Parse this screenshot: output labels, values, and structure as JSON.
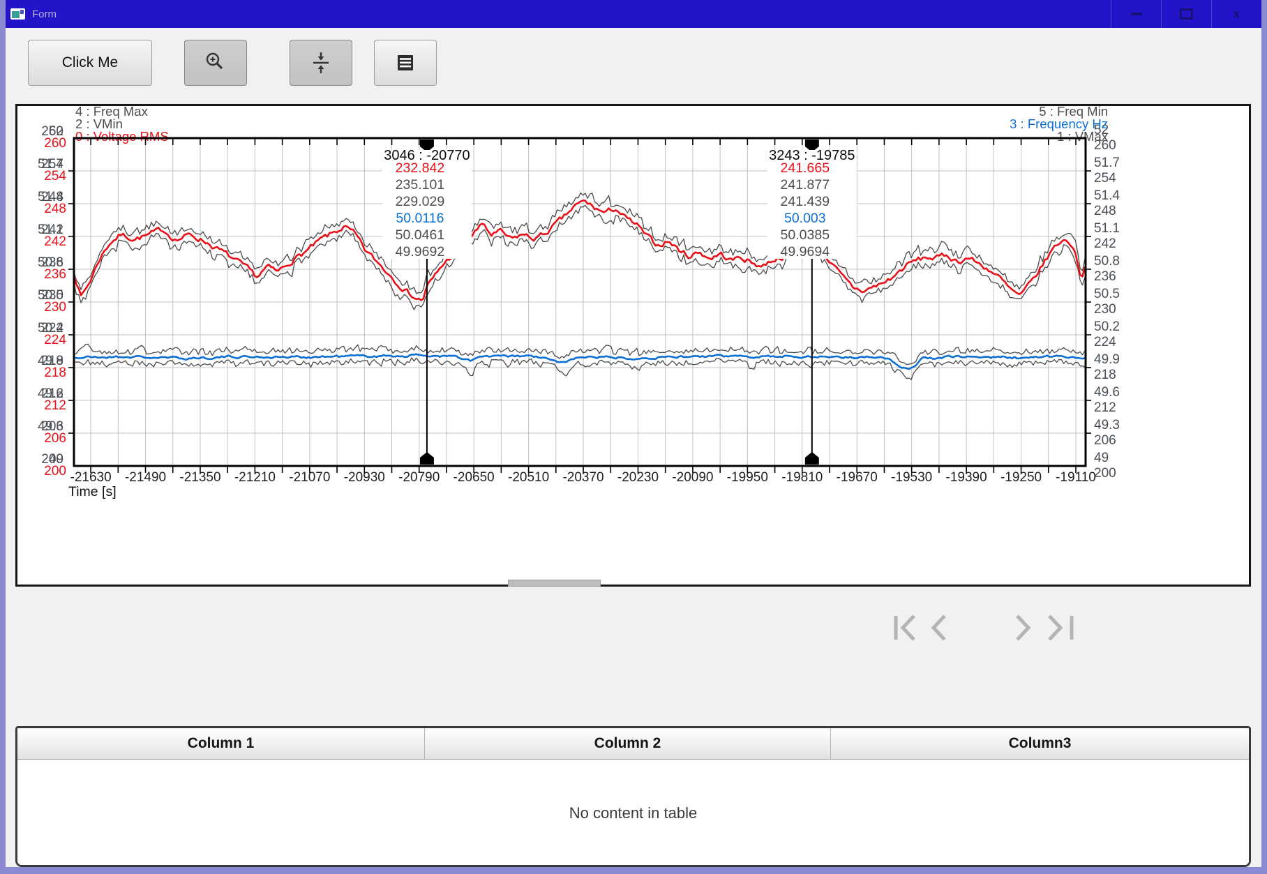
{
  "window": {
    "title": "Form",
    "close_glyph": "x"
  },
  "toolbar": {
    "click_me_label": "Click Me",
    "zoom_icon": "magnifier-plus",
    "fit_icon": "collapse-vertical",
    "table_icon": "list-sheet"
  },
  "chart_data": {
    "type": "line",
    "xlabel": "Time [s]",
    "x_axis": {
      "min": -21673,
      "max": -19085,
      "label_start": -21630,
      "label_step": 140,
      "minor_step": 70,
      "labels": [
        "-21630",
        "-21490",
        "-21350",
        "-21210",
        "-21070",
        "-20930",
        "-20790",
        "-20650",
        "-20510",
        "-20370",
        "-20230",
        "-20090",
        "-19950",
        "-19810",
        "-19670",
        "-19530",
        "-19390",
        "-19250",
        "-19110"
      ]
    },
    "volt_axis": {
      "min": 200,
      "max": 260,
      "step": 6
    },
    "freq_axis": {
      "min": 49,
      "max": 52,
      "step": 0.3
    },
    "grid_color": "#c2c2c2",
    "tick_label_color": "#4a4f55",
    "x_label_color": "#1f1f1f",
    "legend_left": [
      {
        "label": "4 : Freq Max",
        "color": "#4d4d4d"
      },
      {
        "label": "2 : VMin",
        "color": "#4d4d4d"
      },
      {
        "label": "0 : Voltage RMS",
        "color": "#e91018"
      }
    ],
    "legend_right": [
      {
        "label": "5 : Freq Min",
        "color": "#4d4d4d"
      },
      {
        "label": "3 : Frequency Hz",
        "color": "#0c6fd6"
      },
      {
        "label": "1 : VMax",
        "color": "#4d4d4d"
      }
    ],
    "series": [
      {
        "name": "Voltage RMS",
        "axis": "V",
        "color": "#e91018",
        "width": 2.6,
        "jitter": 0.55,
        "seed": 7,
        "anchors": [
          [
            -21676,
            236
          ],
          [
            -21655,
            231
          ],
          [
            -21634,
            233.5
          ],
          [
            -21607,
            238
          ],
          [
            -21580,
            241
          ],
          [
            -21553,
            242.3
          ],
          [
            -21518,
            241.6
          ],
          [
            -21482,
            242.2
          ],
          [
            -21446,
            243.3
          ],
          [
            -21411,
            241.4
          ],
          [
            -21375,
            242.3
          ],
          [
            -21339,
            241.2
          ],
          [
            -21312,
            240
          ],
          [
            -21277,
            238.4
          ],
          [
            -21241,
            236.6
          ],
          [
            -21205,
            234.6
          ],
          [
            -21179,
            236.4
          ],
          [
            -21152,
            235.4
          ],
          [
            -21116,
            237.6
          ],
          [
            -21072,
            239.6
          ],
          [
            -21036,
            241.6
          ],
          [
            -21009,
            242.6
          ],
          [
            -20982,
            243.8
          ],
          [
            -20955,
            242.4
          ],
          [
            -20929,
            239.5
          ],
          [
            -20893,
            237
          ],
          [
            -20857,
            234.5
          ],
          [
            -20822,
            232
          ],
          [
            -20795,
            230.6
          ],
          [
            -20781,
            230.3
          ],
          [
            -20770,
            232.842
          ],
          [
            -20756,
            234
          ],
          [
            -20733,
            236.5
          ],
          [
            -20706,
            238.5
          ],
          [
            -20679,
            240
          ],
          [
            -20652,
            242.5
          ],
          [
            -20625,
            244.3
          ],
          [
            -20607,
            242.3
          ],
          [
            -20580,
            242.8
          ],
          [
            -20554,
            241.3
          ],
          [
            -20527,
            242.4
          ],
          [
            -20500,
            241.6
          ],
          [
            -20474,
            242.2
          ],
          [
            -20447,
            243.8
          ],
          [
            -20420,
            245.4
          ],
          [
            -20394,
            247.4
          ],
          [
            -20367,
            248.4
          ],
          [
            -20340,
            247.2
          ],
          [
            -20313,
            246.2
          ],
          [
            -20287,
            247.2
          ],
          [
            -20260,
            245.2
          ],
          [
            -20233,
            244
          ],
          [
            -20206,
            241.8
          ],
          [
            -20180,
            240.4
          ],
          [
            -20153,
            241.2
          ],
          [
            -20126,
            239.6
          ],
          [
            -20099,
            238.4
          ],
          [
            -20073,
            239.2
          ],
          [
            -20046,
            238
          ],
          [
            -20019,
            238.8
          ],
          [
            -19992,
            237.6
          ],
          [
            -19965,
            238.2
          ],
          [
            -19939,
            237.2
          ],
          [
            -19912,
            236.6
          ],
          [
            -19885,
            237.8
          ],
          [
            -19858,
            238.4
          ],
          [
            -19832,
            240.2
          ],
          [
            -19805,
            241.2
          ],
          [
            -19785,
            241.665
          ],
          [
            -19760,
            239.6
          ],
          [
            -19733,
            236.8
          ],
          [
            -19706,
            234.4
          ],
          [
            -19680,
            232.6
          ],
          [
            -19653,
            232
          ],
          [
            -19626,
            232.8
          ],
          [
            -19599,
            233.6
          ],
          [
            -19573,
            234.8
          ],
          [
            -19546,
            236.6
          ],
          [
            -19519,
            237.6
          ],
          [
            -19492,
            238.2
          ],
          [
            -19466,
            238
          ],
          [
            -19439,
            238.6
          ],
          [
            -19412,
            237.4
          ],
          [
            -19385,
            238.2
          ],
          [
            -19359,
            237
          ],
          [
            -19332,
            236
          ],
          [
            -19305,
            234.4
          ],
          [
            -19278,
            232.2
          ],
          [
            -19252,
            231
          ],
          [
            -19225,
            233.4
          ],
          [
            -19198,
            236.4
          ],
          [
            -19172,
            239.4
          ],
          [
            -19145,
            241.5
          ],
          [
            -19118,
            240.5
          ],
          [
            -19104,
            237
          ],
          [
            -19096,
            234.5
          ],
          [
            -19087,
            236.5
          ]
        ]
      },
      {
        "name": "Frequency Hz",
        "axis": "F",
        "color": "#0c6fd6",
        "width": 2.6,
        "jitter": 0.012,
        "seed": 21,
        "anchors": [
          [
            -21673,
            49.99
          ],
          [
            -21550,
            50.0
          ],
          [
            -21400,
            49.985
          ],
          [
            -21250,
            50.0
          ],
          [
            -21100,
            49.995
          ],
          [
            -20950,
            50.005
          ],
          [
            -20770,
            50.0116
          ],
          [
            -20700,
            50.0
          ],
          [
            -20660,
            49.96
          ],
          [
            -20630,
            50.0
          ],
          [
            -20500,
            50.005
          ],
          [
            -20415,
            49.94
          ],
          [
            -20385,
            50.0
          ],
          [
            -20250,
            49.99
          ],
          [
            -20100,
            50.0
          ],
          [
            -19950,
            50.005
          ],
          [
            -19785,
            50.003
          ],
          [
            -19700,
            49.995
          ],
          [
            -19600,
            50.0
          ],
          [
            -19535,
            49.87
          ],
          [
            -19505,
            49.985
          ],
          [
            -19400,
            50.0
          ],
          [
            -19250,
            49.99
          ],
          [
            -19150,
            50.0
          ],
          [
            -19085,
            49.99
          ]
        ]
      },
      {
        "name": "VMax",
        "axis": "V",
        "color": "#4a4a4a",
        "width": 1.3,
        "base": "Voltage RMS",
        "offset": 0.7,
        "spread": 1.2,
        "seed": 11
      },
      {
        "name": "VMin",
        "axis": "V",
        "color": "#4a4a4a",
        "width": 1.3,
        "base": "Voltage RMS",
        "offset": -0.7,
        "spread": 1.2,
        "seed": 12
      },
      {
        "name": "Freq Max",
        "axis": "F",
        "color": "#4a4a4a",
        "width": 1.3,
        "base": "Frequency Hz",
        "offset": 0.03,
        "spread": 0.05,
        "seed": 13
      },
      {
        "name": "Freq Min",
        "axis": "F",
        "color": "#4a4a4a",
        "width": 1.3,
        "base": "Frequency Hz",
        "offset": -0.03,
        "spread": 0.05,
        "seed": 14,
        "spikes": [
          {
            "t": -20660,
            "d": -0.1,
            "w": 12
          },
          {
            "t": -20415,
            "d": -0.09,
            "w": 12
          },
          {
            "t": -19940,
            "d": -0.06,
            "w": 10
          },
          {
            "t": -19535,
            "d": -0.05,
            "w": 12
          }
        ]
      }
    ],
    "cursors": [
      {
        "header": "3046 : -20770",
        "t": -20770,
        "values": [
          {
            "text": "232.842",
            "color": "#e91018"
          },
          {
            "text": "235.101",
            "color": "#4f4f4f"
          },
          {
            "text": "229.029",
            "color": "#4f4f4f"
          },
          {
            "text": "50.0116",
            "color": "#0c6fd6"
          },
          {
            "text": "50.0461",
            "color": "#4f4f4f"
          },
          {
            "text": "49.9692",
            "color": "#4f4f4f"
          }
        ]
      },
      {
        "header": "3243 : -19785",
        "t": -19785,
        "values": [
          {
            "text": "241.665",
            "color": "#e91018"
          },
          {
            "text": "241.877",
            "color": "#4f4f4f"
          },
          {
            "text": "241.439",
            "color": "#4f4f4f"
          },
          {
            "text": "50.003",
            "color": "#0c6fd6"
          },
          {
            "text": "50.0385",
            "color": "#4f4f4f"
          },
          {
            "text": "49.9694",
            "color": "#4f4f4f"
          }
        ]
      }
    ]
  },
  "pager": {
    "items": [
      "first-page",
      "previous-page",
      "next-page",
      "last-page"
    ],
    "color": "#b4b4b4"
  },
  "table": {
    "columns": [
      "Column 1",
      "Column 2",
      "Column3"
    ],
    "empty_text": "No content in table"
  }
}
